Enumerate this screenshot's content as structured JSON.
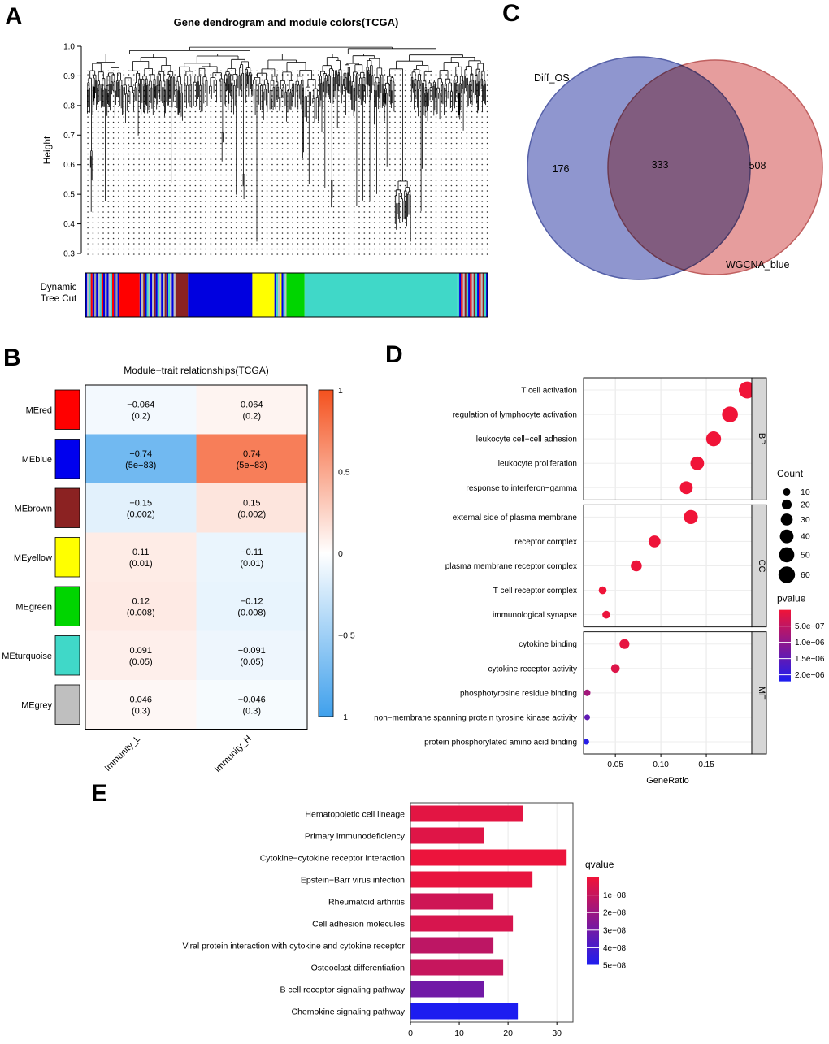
{
  "panel_labels": {
    "A": "A",
    "B": "B",
    "C": "C",
    "D": "D",
    "E": "E"
  },
  "chart_data": [
    {
      "panel": "A",
      "type": "dendrogram",
      "title": "Gene dendrogram and module colors(TCGA)",
      "ylabel": "Height",
      "ylim": [
        0.3,
        1.0
      ],
      "ytick_labels": [
        "1.0",
        "0.9",
        "0.8",
        "0.7",
        "0.6",
        "0.5",
        "0.4",
        "0.3"
      ],
      "band_label_lines": [
        "Dynamic",
        "Tree Cut"
      ],
      "band_segments": [
        {
          "kind": "stripes",
          "colors": [
            "#0000E0",
            "#BEBEBE",
            "#40D8C8",
            "#FF0000",
            "#0000E0",
            "#A0A0A0"
          ],
          "frac": 0.085
        },
        {
          "kind": "solid",
          "color": "#FF0000",
          "frac": 0.05
        },
        {
          "kind": "stripes",
          "colors": [
            "#0000E0",
            "#BEBEBE",
            "#8B2222",
            "#0000E0",
            "#40D8C8",
            "#BEBEBE"
          ],
          "frac": 0.09
        },
        {
          "kind": "solid",
          "color": "#8B2222",
          "frac": 0.03
        },
        {
          "kind": "solid",
          "color": "#0000E0",
          "frac": 0.16
        },
        {
          "kind": "solid",
          "color": "#FFFF00",
          "frac": 0.055
        },
        {
          "kind": "stripes",
          "colors": [
            "#0000E0",
            "#40D8C8",
            "#BEBEBE",
            "#FFFF00"
          ],
          "frac": 0.03
        },
        {
          "kind": "solid",
          "color": "#00D500",
          "frac": 0.045
        },
        {
          "kind": "solid",
          "color": "#40D8C8",
          "frac": 0.38
        },
        {
          "kind": "stripes",
          "colors": [
            "#40D8C8",
            "#0000E0",
            "#FF0000",
            "#BEBEBE",
            "#8B2222"
          ],
          "frac": 0.075
        }
      ]
    },
    {
      "panel": "B",
      "type": "heatmap",
      "title": "Module−trait relationships(TCGA)",
      "columns": [
        "Immunity_L",
        "Immunity_H"
      ],
      "rows": [
        {
          "module": "MEred",
          "color": "#FF0000",
          "cells": [
            {
              "r": -0.064,
              "text": "−0.064",
              "p": "(0.2)"
            },
            {
              "r": 0.064,
              "text": "0.064",
              "p": "(0.2)"
            }
          ]
        },
        {
          "module": "MEblue",
          "color": "#0000EE",
          "cells": [
            {
              "r": -0.74,
              "text": "−0.74",
              "p": "(5e−83)"
            },
            {
              "r": 0.74,
              "text": "0.74",
              "p": "(5e−83)"
            }
          ]
        },
        {
          "module": "MEbrown",
          "color": "#8B2222",
          "cells": [
            {
              "r": -0.15,
              "text": "−0.15",
              "p": "(0.002)"
            },
            {
              "r": 0.15,
              "text": "0.15",
              "p": "(0.002)"
            }
          ]
        },
        {
          "module": "MEyellow",
          "color": "#FFFF00",
          "cells": [
            {
              "r": 0.11,
              "text": "0.11",
              "p": "(0.01)"
            },
            {
              "r": -0.11,
              "text": "−0.11",
              "p": "(0.01)"
            }
          ]
        },
        {
          "module": "MEgreen",
          "color": "#00D500",
          "cells": [
            {
              "r": 0.12,
              "text": "0.12",
              "p": "(0.008)"
            },
            {
              "r": -0.12,
              "text": "−0.12",
              "p": "(0.008)"
            }
          ]
        },
        {
          "module": "MEturquoise",
          "color": "#40D8C8",
          "cells": [
            {
              "r": 0.091,
              "text": "0.091",
              "p": "(0.05)"
            },
            {
              "r": -0.091,
              "text": "−0.091",
              "p": "(0.05)"
            }
          ]
        },
        {
          "module": "MEgrey",
          "color": "#BFBFBF",
          "cells": [
            {
              "r": 0.046,
              "text": "0.046",
              "p": "(0.3)"
            },
            {
              "r": -0.046,
              "text": "−0.046",
              "p": "(0.3)"
            }
          ]
        }
      ],
      "colorbar_ticks": [
        {
          "label": "1",
          "value": 1
        },
        {
          "label": "0.5",
          "value": 0.5
        },
        {
          "label": "0",
          "value": 0
        },
        {
          "label": "−0.5",
          "value": -0.5
        },
        {
          "label": "−1",
          "value": -1
        }
      ],
      "colors": {
        "positive": "#F4511E",
        "negative": "#3FA0EC"
      }
    },
    {
      "panel": "C",
      "type": "venn",
      "sets": [
        {
          "label": "Diff_OS",
          "only": "176",
          "color": "#7F88C8",
          "stroke": "#5560A8"
        },
        {
          "label": "WGCNA_blue",
          "only": "508",
          "color": "#E08484",
          "stroke": "#C06060"
        }
      ],
      "intersection": "333"
    },
    {
      "panel": "D",
      "type": "scatter",
      "xlabel": "GeneRatio",
      "xticks": [
        {
          "label": "0.05",
          "value": 0.05
        },
        {
          "label": "0.10",
          "value": 0.1
        },
        {
          "label": "0.15",
          "value": 0.15
        }
      ],
      "facets": [
        {
          "name": "BP",
          "terms": [
            {
              "label": "T cell activation",
              "ratio": 0.195,
              "count": 63,
              "pvalue": 1e-10
            },
            {
              "label": "regulation of lymphocyte activation",
              "ratio": 0.176,
              "count": 55,
              "pvalue": 1e-10
            },
            {
              "label": "leukocyte cell−cell adhesion",
              "ratio": 0.158,
              "count": 48,
              "pvalue": 1e-10
            },
            {
              "label": "leukocyte proliferation",
              "ratio": 0.14,
              "count": 40,
              "pvalue": 1e-09
            },
            {
              "label": "response to interferon−gamma",
              "ratio": 0.128,
              "count": 35,
              "pvalue": 1e-09
            }
          ]
        },
        {
          "name": "CC",
          "terms": [
            {
              "label": "external side of plasma membrane",
              "ratio": 0.133,
              "count": 42,
              "pvalue": 1e-10
            },
            {
              "label": "receptor complex",
              "ratio": 0.093,
              "count": 30,
              "pvalue": 2e-08
            },
            {
              "label": "plasma membrane receptor complex",
              "ratio": 0.073,
              "count": 25,
              "pvalue": 4e-08
            },
            {
              "label": "T cell receptor complex",
              "ratio": 0.036,
              "count": 12,
              "pvalue": 1e-08
            },
            {
              "label": "immunological synapse",
              "ratio": 0.04,
              "count": 12,
              "pvalue": 5e-08
            }
          ]
        },
        {
          "name": "MF",
          "terms": [
            {
              "label": "cytokine binding",
              "ratio": 0.06,
              "count": 20,
              "pvalue": 1e-07
            },
            {
              "label": "cytokine receptor activity",
              "ratio": 0.05,
              "count": 15,
              "pvalue": 2e-07
            },
            {
              "label": "phosphotyrosine residue binding",
              "ratio": 0.019,
              "count": 8,
              "pvalue": 8e-07
            },
            {
              "label": "non−membrane spanning protein tyrosine kinase activity",
              "ratio": 0.019,
              "count": 6,
              "pvalue": 1.5e-06
            },
            {
              "label": "protein phosphorylated amino acid binding",
              "ratio": 0.018,
              "count": 6,
              "pvalue": 2.1e-06
            }
          ]
        }
      ],
      "legend": {
        "count_title": "Count",
        "count_items": [
          10,
          20,
          30,
          40,
          50,
          60
        ],
        "pvalue_title": "pvalue",
        "pvalue_ticks": [
          {
            "label": "5.0e−07",
            "value": 5e-07
          },
          {
            "label": "1.0e−06",
            "value": 1e-06
          },
          {
            "label": "1.5e−06",
            "value": 1.5e-06
          },
          {
            "label": "2.0e−06",
            "value": 2e-06
          }
        ],
        "pvalue_max": 2.2e-06
      }
    },
    {
      "panel": "E",
      "type": "bar",
      "xticks": [
        {
          "label": "0",
          "value": 0
        },
        {
          "label": "10",
          "value": 10
        },
        {
          "label": "20",
          "value": 20
        },
        {
          "label": "30",
          "value": 30
        }
      ],
      "bars": [
        {
          "label": "Hematopoietic cell lineage",
          "value": 23,
          "qvalue": 3e-09
        },
        {
          "label": "Primary immunodeficiency",
          "value": 15,
          "qvalue": 4e-09
        },
        {
          "label": "Cytokine−cytokine receptor interaction",
          "value": 32,
          "qvalue": 1e-09
        },
        {
          "label": "Epstein−Barr virus infection",
          "value": 25,
          "qvalue": 2e-09
        },
        {
          "label": "Rheumatoid arthritis",
          "value": 17,
          "qvalue": 8e-09
        },
        {
          "label": "Cell adhesion molecules",
          "value": 21,
          "qvalue": 6e-09
        },
        {
          "label": "Viral protein interaction with cytokine and cytokine receptor",
          "value": 17,
          "qvalue": 1.2e-08
        },
        {
          "label": "Osteoclast differentiation",
          "value": 19,
          "qvalue": 1e-08
        },
        {
          "label": "B cell receptor signaling pathway",
          "value": 15,
          "qvalue": 3e-08
        },
        {
          "label": "Chemokine signaling pathway",
          "value": 22,
          "qvalue": 5e-08
        }
      ],
      "legend": {
        "title": "qvalue",
        "ticks": [
          {
            "label": "1e−08",
            "value": 1e-08
          },
          {
            "label": "2e−08",
            "value": 2e-08
          },
          {
            "label": "3e−08",
            "value": 3e-08
          },
          {
            "label": "4e−08",
            "value": 4e-08
          },
          {
            "label": "5e−08",
            "value": 5e-08
          }
        ],
        "qmax": 5e-08
      }
    }
  ]
}
